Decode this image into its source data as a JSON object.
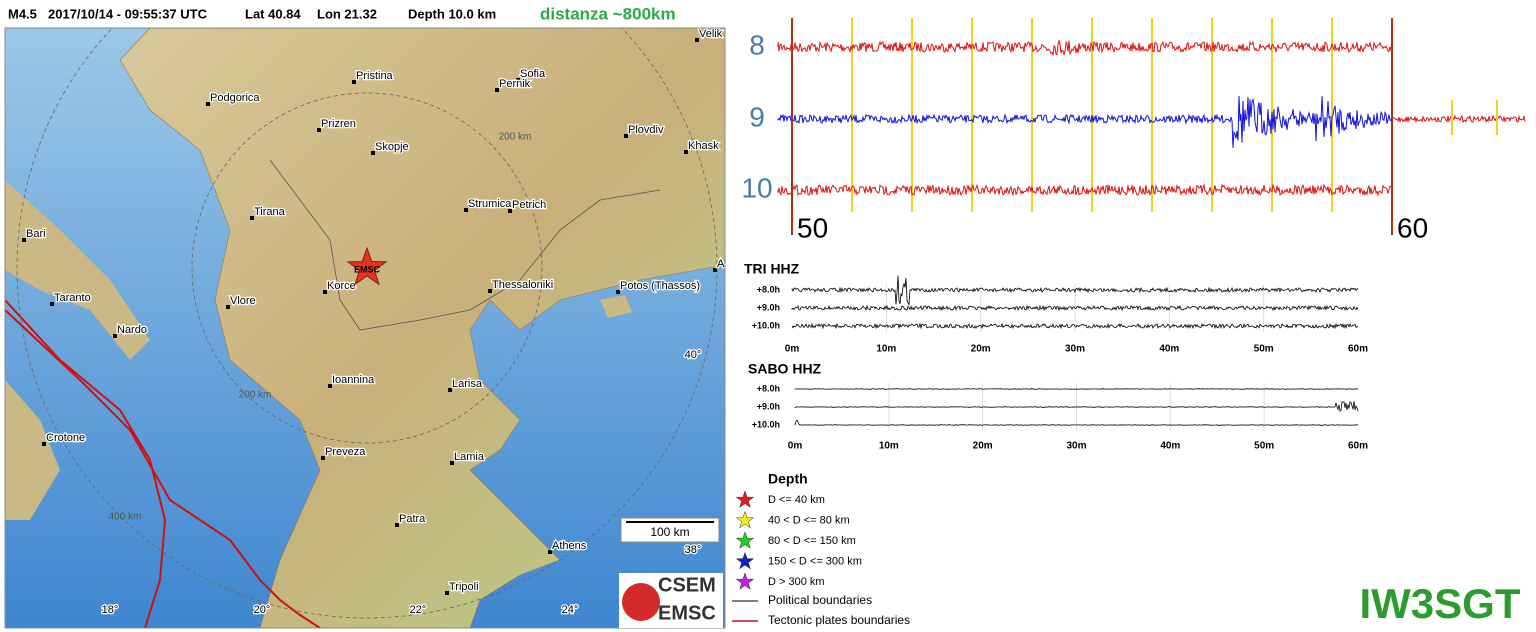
{
  "header": {
    "magnitude": "M4.5",
    "datetime": "2017/10/14 - 09:55:37 UTC",
    "lat": "Lat 40.84",
    "lon": "Lon 21.32",
    "depth": "Depth  10.0 km",
    "distance": "distanza ~800km"
  },
  "map": {
    "cities": [
      "Velik",
      "Pristina",
      "Sofia",
      "Pernik",
      "Podgorica",
      "Prizren",
      "Skopje",
      "Plovdiv",
      "Khask",
      "Strumica",
      "Petrich",
      "Tirana",
      "Bari",
      "Taranto",
      "Nardo",
      "Vlore",
      "Korce",
      "Thessaloniki",
      "Potos (Thassos)",
      "Ioannina",
      "Larisa",
      "Crotone",
      "Preveza",
      "Lamia",
      "Patra",
      "Athens",
      "Tripoli",
      "A"
    ],
    "rings": [
      "200 km",
      "200 km",
      "400 km"
    ],
    "grid_labels": [
      "40°",
      "38°",
      "18°",
      "20°",
      "22°",
      "24°"
    ],
    "scale": "100 km",
    "epicenter": "EMSC"
  },
  "logo": {
    "top": "CSEM",
    "bottom": "EMSC"
  },
  "seismogram": {
    "channels": [
      "8",
      "9",
      "10"
    ],
    "minutes": [
      "50",
      "60"
    ]
  },
  "panels": [
    {
      "title": "TRI HHZ",
      "rows": [
        "+8.0h",
        "+9.0h",
        "+10.0h"
      ],
      "xlabels": [
        "0m",
        "10m",
        "20m",
        "30m",
        "40m",
        "50m",
        "60m"
      ]
    },
    {
      "title": "SABO HHZ",
      "rows": [
        "+8.0h",
        "+9.0h",
        "+10.0h"
      ],
      "xlabels": [
        "0m",
        "10m",
        "20m",
        "30m",
        "40m",
        "50m",
        "60m"
      ]
    }
  ],
  "legend": {
    "title": "Depth",
    "depth_items": [
      "D <= 40 km",
      "40 < D <= 80 km",
      "80 < D <= 150 km",
      "150 < D <= 300 km",
      "D > 300 km"
    ],
    "line_items": [
      "Political boundaries",
      "Tectonic plates boundaries"
    ]
  },
  "callsign": "IW3SGT"
}
